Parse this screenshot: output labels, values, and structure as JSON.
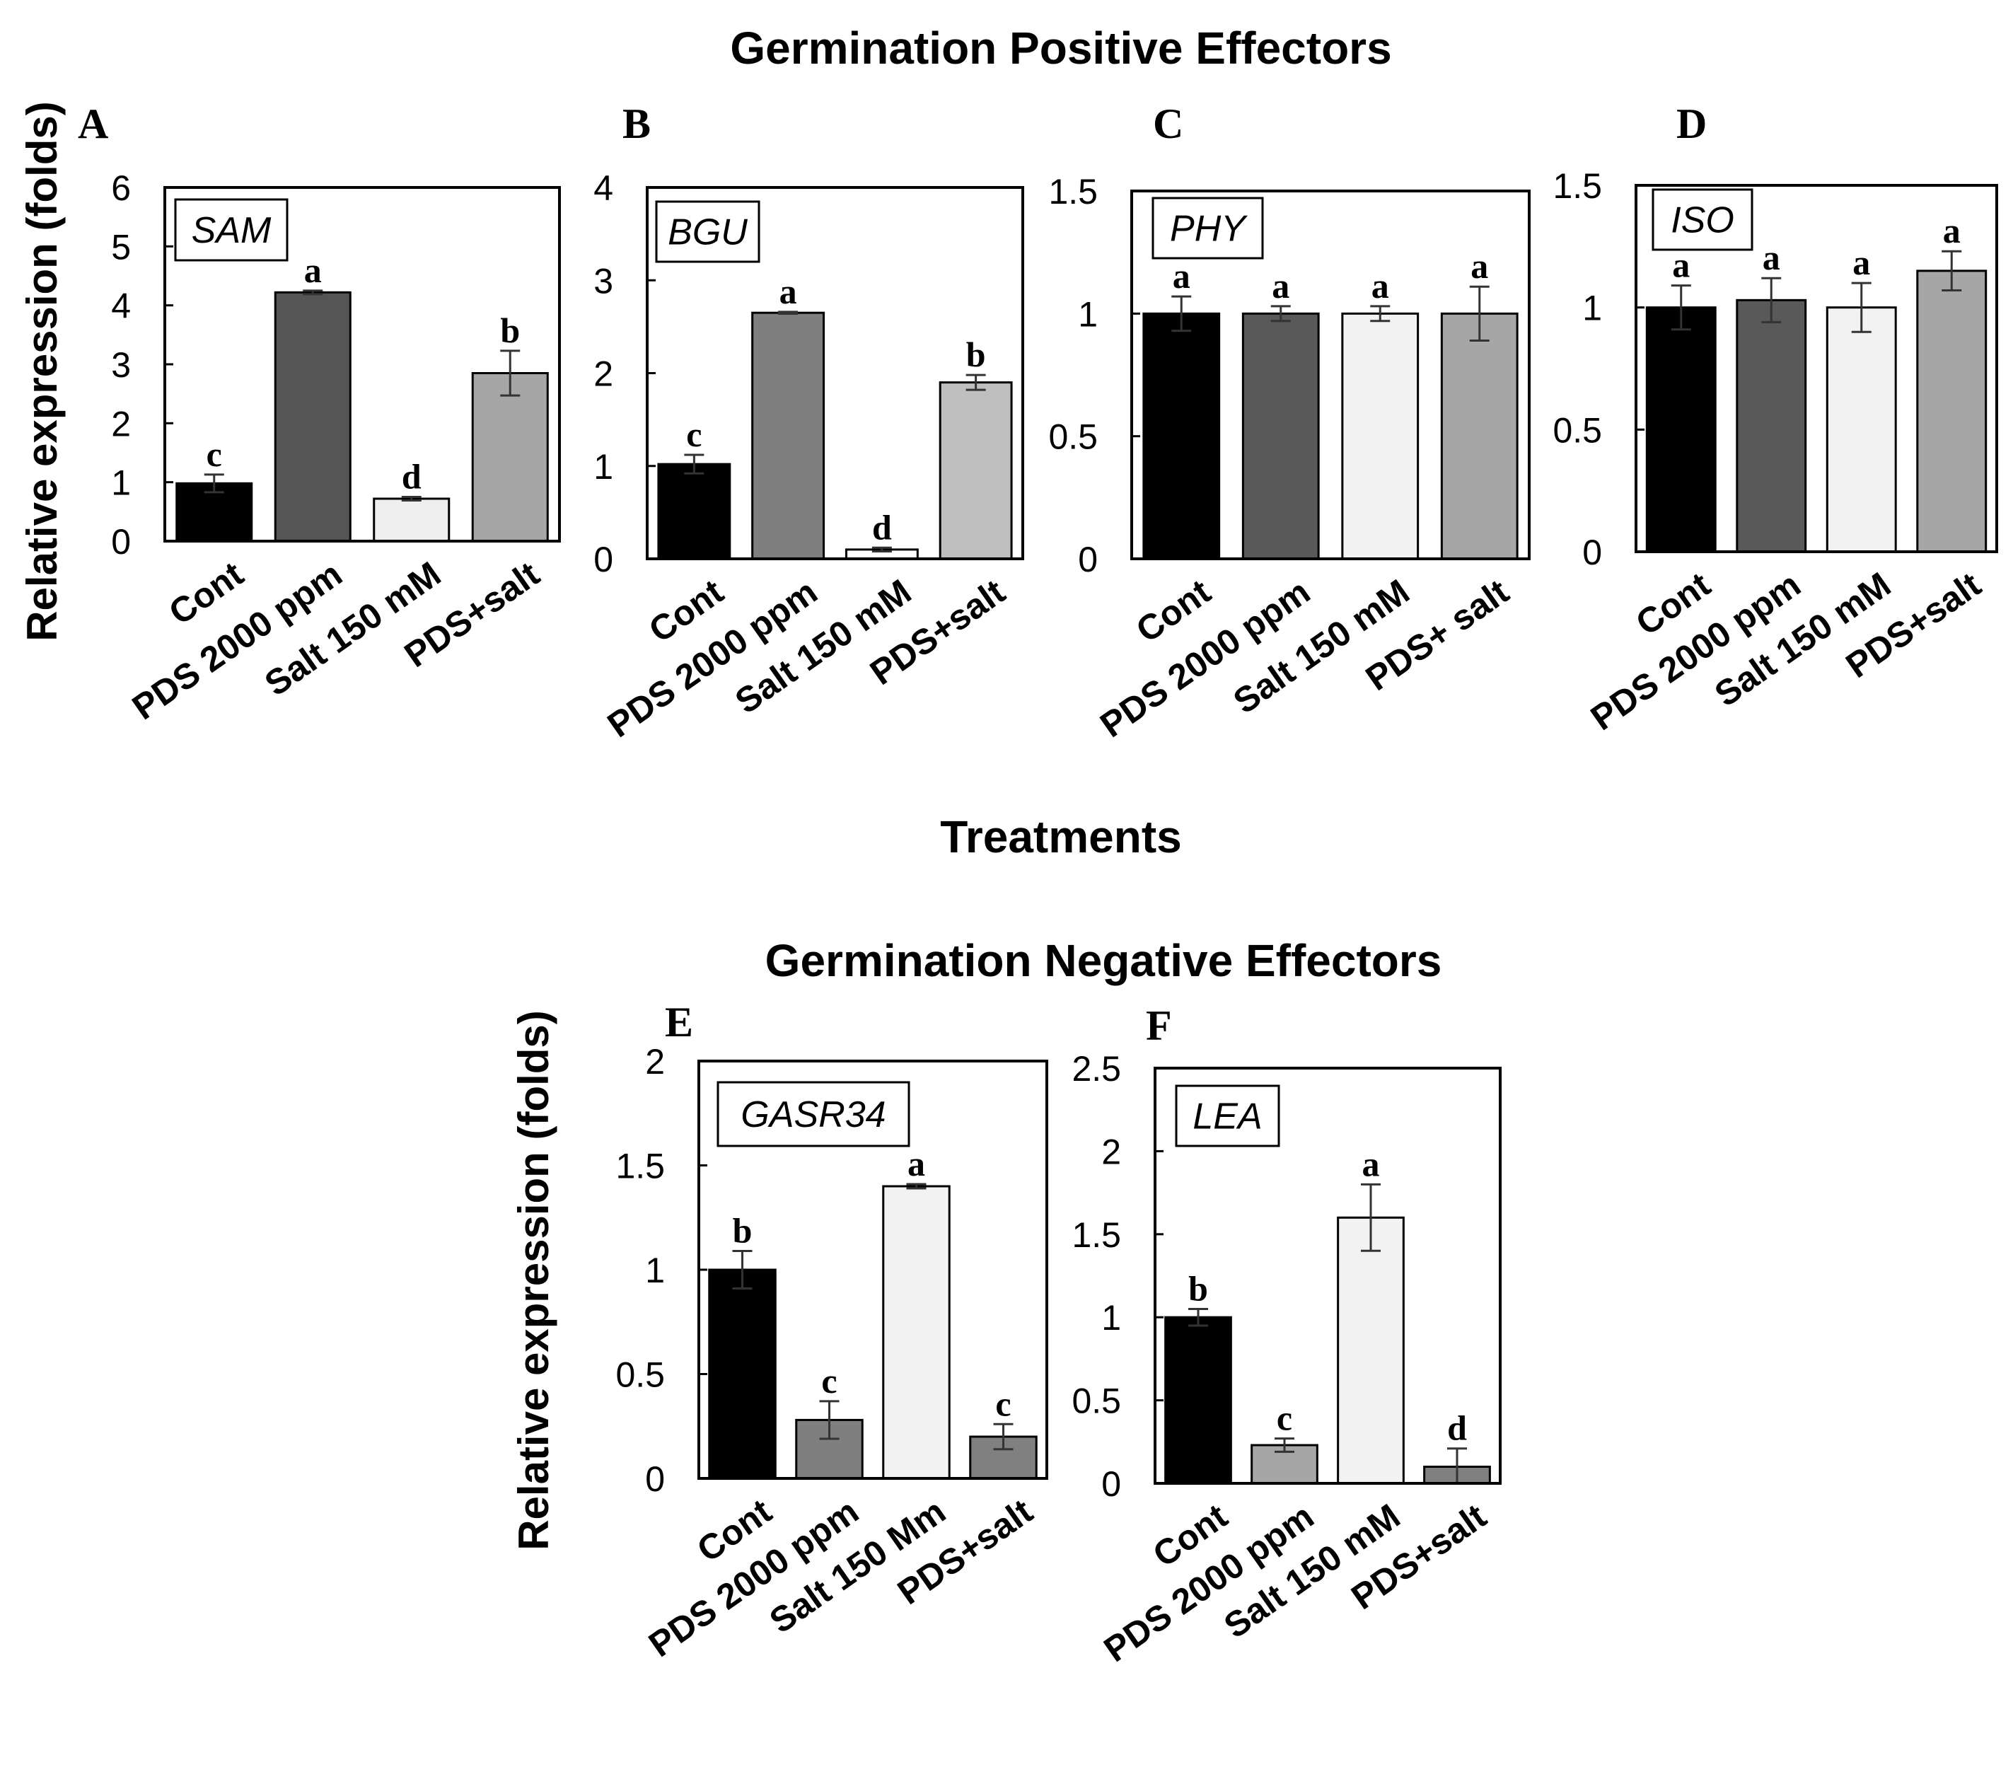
{
  "figure": {
    "top_title": "Germination Positive Effectors",
    "bottom_title": "Germination Negative Effectors",
    "ylabel": "Relative expression (folds)",
    "xlabel": "Treatments"
  },
  "chart_data": [
    {
      "type": "bar",
      "panel": "A",
      "gene": "SAM",
      "categories": [
        "Cont",
        "PDS 2000 ppm",
        "Salt 150 mM",
        "PDS+salt"
      ],
      "values": [
        0.98,
        4.22,
        0.72,
        2.85
      ],
      "errors": [
        0.15,
        0.03,
        0.03,
        0.38
      ],
      "letters": [
        "c",
        "a",
        "d",
        "b"
      ],
      "colors": [
        "#000000",
        "#555555",
        "#eeeeee",
        "#a6a6a6"
      ],
      "ylim": [
        0,
        6
      ],
      "yticks": [
        "0",
        "1",
        "2",
        "3",
        "4",
        "5",
        "6"
      ],
      "ytick_values": [
        0,
        1,
        2,
        3,
        4,
        5,
        6
      ],
      "yaxis_side": "left"
    },
    {
      "type": "bar",
      "panel": "B",
      "gene": "BGU",
      "categories": [
        "Cont",
        "PDS 2000 ppm",
        "Salt 150 mM",
        "PDS+salt"
      ],
      "values": [
        1.02,
        2.65,
        0.1,
        1.9
      ],
      "errors": [
        0.1,
        0.01,
        0.02,
        0.08
      ],
      "letters": [
        "c",
        "a",
        "d",
        "b"
      ],
      "colors": [
        "#000000",
        "#7f7f7f",
        "#ffffff",
        "#bfbfbf"
      ],
      "ylim": [
        0,
        4
      ],
      "yticks": [
        "0",
        "1",
        "2",
        "3",
        "4"
      ],
      "ytick_values": [
        0,
        1,
        2,
        3,
        4
      ],
      "yaxis_side": "left"
    },
    {
      "type": "bar",
      "panel": "C",
      "gene": "PHY",
      "categories": [
        "Cont",
        "PDS 2000 ppm",
        "Salt 150 mM",
        "PDS+ salt"
      ],
      "values": [
        1.0,
        1.0,
        1.0,
        1.0
      ],
      "errors": [
        0.07,
        0.03,
        0.03,
        0.11
      ],
      "letters": [
        "a",
        "a",
        "a",
        "a"
      ],
      "colors": [
        "#000000",
        "#595959",
        "#f2f2f2",
        "#a6a6a6"
      ],
      "ylim": [
        0,
        1.5
      ],
      "yticks": [
        "0",
        "0.5",
        "1",
        "1.5"
      ],
      "ytick_values": [
        0,
        0.5,
        1,
        1.5
      ],
      "yaxis_side": "left"
    },
    {
      "type": "bar",
      "panel": "D",
      "gene": "ISO",
      "categories": [
        "Cont",
        "PDS 2000 ppm",
        "Salt 150 mM",
        "PDS+salt"
      ],
      "values": [
        1.0,
        1.03,
        1.0,
        1.15
      ],
      "errors": [
        0.09,
        0.09,
        0.1,
        0.08
      ],
      "letters": [
        "a",
        "a",
        "a",
        "a"
      ],
      "colors": [
        "#000000",
        "#595959",
        "#f2f2f2",
        "#a6a6a6"
      ],
      "ylim": [
        0,
        1.5
      ],
      "yticks": [
        "0",
        "0.5",
        "1",
        "1.5"
      ],
      "ytick_values": [
        0,
        0.5,
        1,
        1.5
      ],
      "yaxis_side": "left"
    },
    {
      "type": "bar",
      "panel": "E",
      "gene": "GASR34",
      "categories": [
        "Cont",
        "PDS 2000 ppm",
        "Salt 150 Mm",
        "PDS+salt"
      ],
      "values": [
        1.0,
        0.28,
        1.4,
        0.2
      ],
      "errors": [
        0.09,
        0.09,
        0.01,
        0.06
      ],
      "letters": [
        "b",
        "c",
        "a",
        "c"
      ],
      "colors": [
        "#000000",
        "#7f7f7f",
        "#f2f2f2",
        "#808080"
      ],
      "ylim": [
        0,
        2
      ],
      "yticks": [
        "0",
        "0.5",
        "1",
        "1.5",
        "2"
      ],
      "ytick_values": [
        0,
        0.5,
        1,
        1.5,
        2
      ],
      "yaxis_side": "left"
    },
    {
      "type": "bar",
      "panel": "F",
      "gene": "LEA",
      "categories": [
        "Cont",
        "PDS 2000 ppm",
        "Salt 150 mM",
        "PDS+salt"
      ],
      "values": [
        1.0,
        0.23,
        1.6,
        0.1
      ],
      "errors": [
        0.05,
        0.04,
        0.2,
        0.11
      ],
      "letters": [
        "b",
        "c",
        "a",
        "d"
      ],
      "colors": [
        "#000000",
        "#a6a6a6",
        "#f2f2f2",
        "#808080"
      ],
      "ylim": [
        0,
        2.5
      ],
      "yticks": [
        "0",
        "0.5",
        "1",
        "1.5",
        "2",
        "2.5"
      ],
      "ytick_values": [
        0,
        0.5,
        1,
        1.5,
        2,
        2.5
      ],
      "yaxis_side": "left"
    }
  ]
}
